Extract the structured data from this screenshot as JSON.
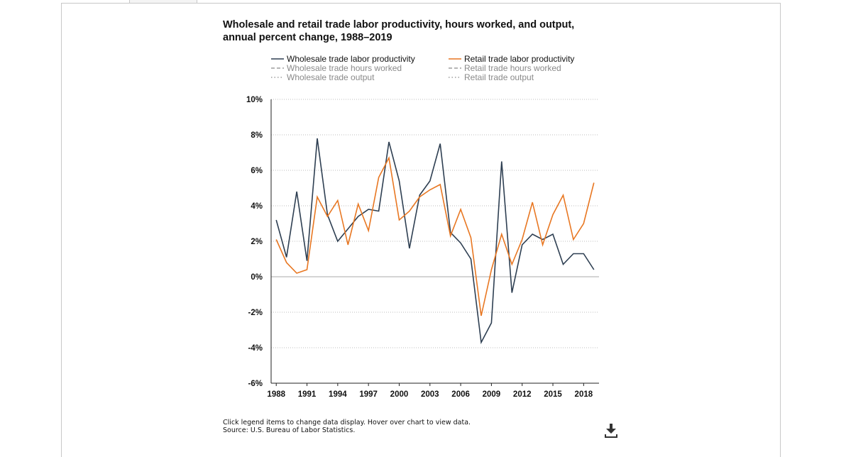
{
  "chart": {
    "title": "Wholesale and retail trade labor productivity, hours worked, and output, annual percent change, 1988–2019"
  },
  "legend": [
    {
      "label": "Wholesale trade labor productivity",
      "color": "#2e3f52",
      "style": "solid",
      "active": true
    },
    {
      "label": "Retail trade labor productivity",
      "color": "#e87722",
      "style": "solid",
      "active": true
    },
    {
      "label": "Wholesale trade hours worked",
      "color": "#8a8a8a",
      "style": "dashed",
      "active": false
    },
    {
      "label": "Retail trade hours worked",
      "color": "#8a8a8a",
      "style": "dashed",
      "active": false
    },
    {
      "label": "Wholesale trade output",
      "color": "#8a8a8a",
      "style": "dotted",
      "active": false
    },
    {
      "label": "Retail trade output",
      "color": "#8a8a8a",
      "style": "dotted",
      "active": false
    }
  ],
  "footer": {
    "instructions": "Click legend items to change data display. Hover over chart to view data.",
    "source": "Source: U.S. Bureau of Labor Statistics."
  },
  "icons": {
    "download": "download-icon"
  },
  "chart_data": {
    "type": "line",
    "title": "Wholesale and retail trade labor productivity, hours worked, and output, annual percent change, 1988–2019",
    "xlabel": "",
    "ylabel": "",
    "x": [
      1988,
      1989,
      1990,
      1991,
      1992,
      1993,
      1994,
      1995,
      1996,
      1997,
      1998,
      1999,
      2000,
      2001,
      2002,
      2003,
      2004,
      2005,
      2006,
      2007,
      2008,
      2009,
      2010,
      2011,
      2012,
      2013,
      2014,
      2015,
      2016,
      2017,
      2018,
      2019
    ],
    "xticks": [
      1988,
      1991,
      1994,
      1997,
      2000,
      2003,
      2006,
      2009,
      2012,
      2015,
      2018
    ],
    "xlim": [
      1987.5,
      2019.5
    ],
    "ylim": [
      -6,
      10
    ],
    "yticks": [
      -6,
      -4,
      -2,
      0,
      2,
      4,
      6,
      8,
      10
    ],
    "y_tick_format": "percent",
    "grid": true,
    "legend_position": "top",
    "series": [
      {
        "name": "Wholesale trade labor productivity",
        "color": "#2e3f52",
        "values": [
          3.2,
          1.1,
          4.8,
          0.9,
          7.8,
          3.5,
          2.0,
          2.7,
          3.4,
          3.8,
          3.7,
          7.6,
          5.4,
          1.6,
          4.6,
          5.4,
          7.5,
          2.5,
          1.9,
          1.0,
          -3.7,
          -2.6,
          6.5,
          -0.9,
          1.8,
          2.4,
          2.1,
          2.4,
          0.7,
          1.3,
          1.3,
          0.4
        ]
      },
      {
        "name": "Retail trade labor productivity",
        "color": "#e87722",
        "values": [
          2.1,
          0.8,
          0.2,
          0.4,
          4.5,
          3.4,
          4.3,
          1.8,
          4.1,
          2.6,
          5.6,
          6.7,
          3.2,
          3.7,
          4.5,
          4.9,
          5.2,
          2.3,
          3.8,
          2.2,
          -2.2,
          0.4,
          2.4,
          0.7,
          2.1,
          4.2,
          1.8,
          3.5,
          4.6,
          2.1,
          3.0,
          5.3
        ]
      }
    ]
  }
}
